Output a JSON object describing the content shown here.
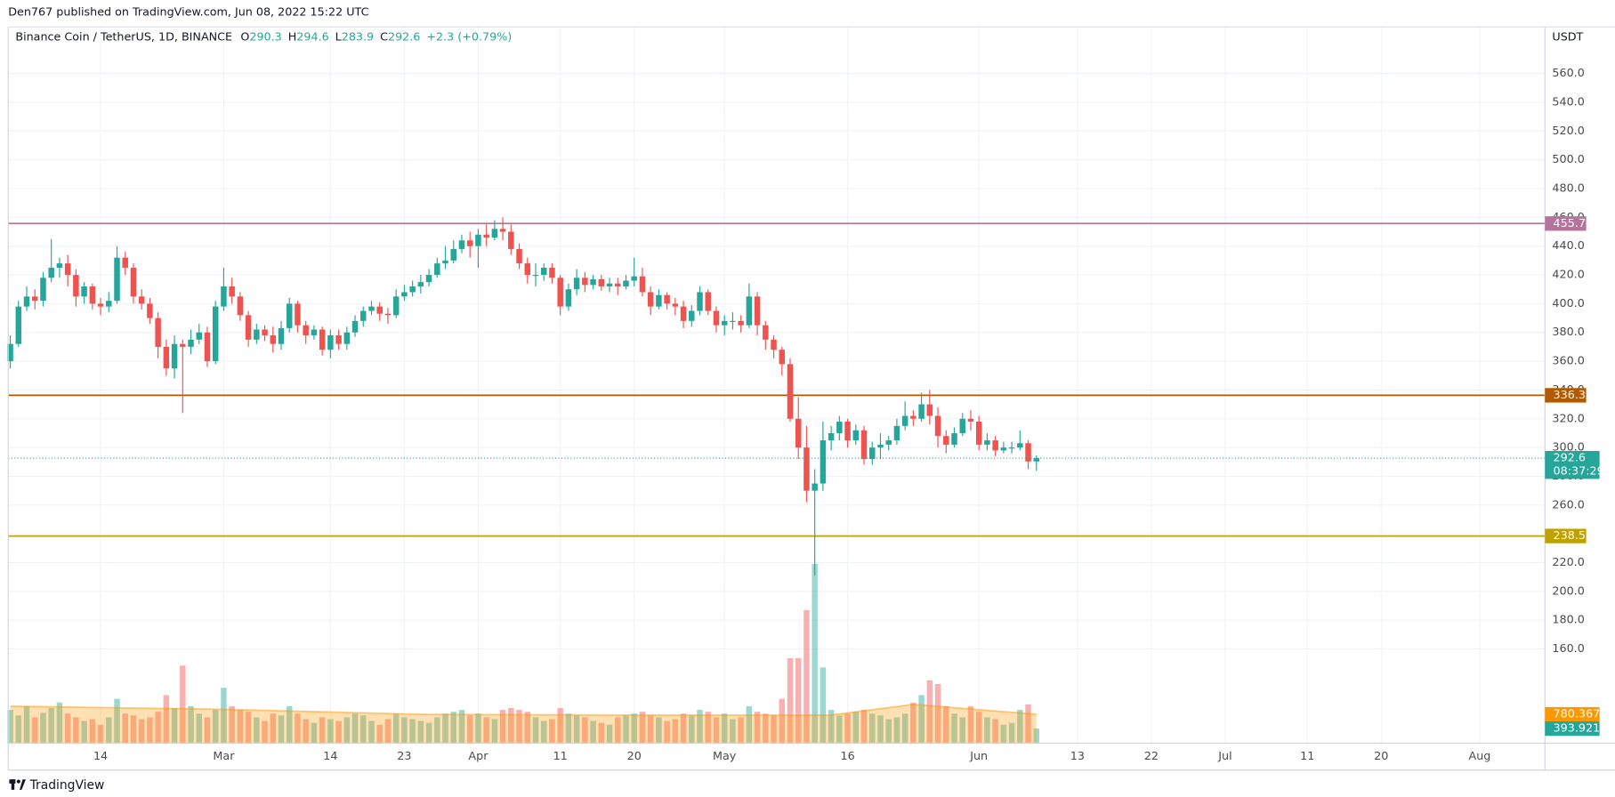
{
  "chart_data": {
    "type": "candlestick",
    "published": "Den767 published on TradingView.com, Jun 08, 2022 15:22 UTC",
    "title": "Binance Coin / TetherUS, 1D, BINANCE",
    "ohlc_labels": [
      "O",
      "H",
      "L",
      "C"
    ],
    "change": "+2.3 (+0.79%)",
    "currency": "USDT",
    "countdown": "08:37:29",
    "brand": "TradingView",
    "up_color": "#26a69a",
    "down_color": "#ef5350",
    "open": [
      360,
      372,
      398,
      405,
      402,
      418,
      425,
      428,
      420,
      405,
      412,
      400,
      398,
      402,
      432,
      425,
      405,
      400,
      390,
      370,
      355,
      372,
      370,
      375,
      380,
      360,
      398,
      412,
      405,
      392,
      375,
      382,
      378,
      372,
      383,
      400,
      385,
      378,
      382,
      368,
      378,
      372,
      380,
      388,
      395,
      398,
      393,
      392,
      405,
      408,
      412,
      415,
      420,
      428,
      430,
      438,
      444,
      440,
      448,
      446,
      452,
      450,
      438,
      428,
      420,
      420,
      425,
      418,
      398,
      410,
      418,
      413,
      417,
      412,
      414,
      412,
      416,
      419,
      408,
      398,
      406,
      400,
      398,
      388,
      395,
      408,
      395,
      385,
      388,
      388,
      385,
      405,
      385,
      375,
      368,
      358,
      320,
      300,
      270,
      275,
      305,
      310,
      318,
      305,
      312,
      292,
      300,
      302,
      305,
      315,
      322,
      320,
      330,
      322,
      308,
      302,
      310,
      320,
      318,
      302,
      305,
      298,
      300,
      300,
      303,
      290.3
    ],
    "high": [
      378,
      402,
      412,
      410,
      422,
      445,
      432,
      434,
      424,
      415,
      414,
      404,
      408,
      440,
      436,
      428,
      410,
      404,
      394,
      375,
      378,
      375,
      382,
      386,
      384,
      402,
      425,
      418,
      408,
      395,
      386,
      385,
      384,
      388,
      404,
      402,
      388,
      385,
      384,
      382,
      382,
      384,
      392,
      398,
      402,
      401,
      397,
      410,
      413,
      416,
      420,
      424,
      432,
      440,
      444,
      448,
      450,
      452,
      455,
      458,
      460,
      455,
      442,
      432,
      428,
      428,
      428,
      420,
      414,
      424,
      422,
      420,
      420,
      418,
      418,
      420,
      432,
      425,
      412,
      410,
      408,
      404,
      402,
      399,
      412,
      410,
      398,
      392,
      394,
      392,
      414,
      408,
      388,
      378,
      370,
      362,
      335,
      315,
      285,
      318,
      315,
      322,
      320,
      316,
      315,
      304,
      310,
      308,
      320,
      332,
      326,
      338,
      340,
      328,
      312,
      314,
      324,
      326,
      322,
      310,
      308,
      304,
      304,
      312,
      305,
      294.6
    ],
    "low": [
      355,
      370,
      395,
      396,
      398,
      415,
      418,
      412,
      398,
      400,
      396,
      392,
      394,
      400,
      420,
      400,
      396,
      386,
      362,
      350,
      348,
      324,
      365,
      372,
      356,
      358,
      395,
      400,
      388,
      370,
      372,
      374,
      366,
      368,
      380,
      380,
      372,
      375,
      364,
      362,
      368,
      368,
      377,
      384,
      392,
      388,
      386,
      390,
      402,
      405,
      407,
      412,
      418,
      424,
      428,
      435,
      432,
      425,
      440,
      444,
      444,
      434,
      424,
      414,
      412,
      416,
      414,
      392,
      395,
      406,
      408,
      410,
      409,
      408,
      406,
      410,
      412,
      405,
      392,
      396,
      396,
      392,
      383,
      384,
      392,
      392,
      380,
      378,
      382,
      380,
      383,
      378,
      368,
      362,
      350,
      318,
      292,
      262,
      211,
      270,
      298,
      305,
      300,
      302,
      288,
      288,
      292,
      298,
      302,
      312,
      315,
      318,
      316,
      300,
      296,
      300,
      308,
      312,
      298,
      298,
      294,
      296,
      296,
      298,
      285,
      283.9
    ],
    "close": [
      372,
      398,
      405,
      402,
      418,
      425,
      428,
      420,
      405,
      412,
      400,
      398,
      402,
      432,
      425,
      405,
      400,
      390,
      370,
      355,
      372,
      370,
      375,
      380,
      360,
      398,
      412,
      405,
      392,
      375,
      382,
      378,
      372,
      383,
      400,
      385,
      378,
      382,
      368,
      378,
      372,
      380,
      388,
      395,
      398,
      393,
      392,
      405,
      408,
      412,
      415,
      420,
      428,
      430,
      438,
      444,
      440,
      448,
      446,
      452,
      450,
      438,
      428,
      420,
      420,
      425,
      418,
      398,
      410,
      418,
      413,
      417,
      412,
      414,
      412,
      416,
      419,
      408,
      398,
      406,
      400,
      398,
      388,
      395,
      408,
      395,
      385,
      388,
      388,
      385,
      405,
      385,
      375,
      368,
      358,
      320,
      300,
      270,
      275,
      305,
      310,
      318,
      305,
      312,
      292,
      300,
      302,
      305,
      315,
      322,
      320,
      330,
      322,
      308,
      302,
      310,
      320,
      318,
      302,
      305,
      298,
      300,
      300,
      303,
      290.3,
      292.6
    ],
    "volumes": [
      900000,
      750000,
      1000000,
      700000,
      820000,
      950000,
      1100000,
      800000,
      700000,
      600000,
      650000,
      500000,
      700000,
      1200000,
      800000,
      750000,
      650000,
      700000,
      850000,
      1300000,
      950000,
      2100000,
      1000000,
      800000,
      700000,
      900000,
      1500000,
      1000000,
      900000,
      850000,
      700000,
      600000,
      800000,
      750000,
      1000000,
      800000,
      650000,
      550000,
      700000,
      650000,
      600000,
      700000,
      800000,
      750000,
      600000,
      500000,
      650000,
      800000,
      700000,
      650000,
      600000,
      550000,
      700000,
      800000,
      850000,
      900000,
      750000,
      800000,
      700000,
      650000,
      900000,
      950000,
      900000,
      850000,
      700000,
      600000,
      650000,
      950000,
      800000,
      750000,
      700000,
      600000,
      550000,
      500000,
      700000,
      750000,
      800000,
      850000,
      750000,
      700000,
      600000,
      650000,
      800000,
      750000,
      900000,
      850000,
      700000,
      800000,
      650000,
      700000,
      1000000,
      850000,
      800000,
      750000,
      1200000,
      2300000,
      2300000,
      3600000,
      4850000,
      2050000,
      900000,
      750000,
      800000,
      850000,
      900000,
      800000,
      750000,
      650000,
      700000,
      800000,
      1100000,
      1300000,
      1700000,
      1600000,
      1000000,
      800000,
      700000,
      1000000,
      850000,
      700000,
      650000,
      500000,
      550000,
      900000,
      1050000,
      393921
    ],
    "volume_label": "393.921K",
    "volume_ma": {
      "x": [
        0,
        25,
        50,
        75,
        100,
        110,
        125
      ],
      "values": [
        1000000,
        920000,
        780000,
        760000,
        760000,
        1050000,
        780367
      ],
      "label": "780.367K",
      "color": "#ff9800"
    },
    "levels": [
      {
        "value": 455.7,
        "color": "#b5739c"
      },
      {
        "value": 336.3,
        "color": "#b35900"
      },
      {
        "value": 238.5,
        "color": "#bfa100"
      }
    ],
    "xlim": [
      -0.25,
      186.95
    ],
    "xticks": [
      {
        "value": 11,
        "label": "14"
      },
      {
        "value": 26,
        "label": "Mar"
      },
      {
        "value": 39,
        "label": "14"
      },
      {
        "value": 48,
        "label": "23"
      },
      {
        "value": 57,
        "label": "Apr"
      },
      {
        "value": 67,
        "label": "11"
      },
      {
        "value": 76,
        "label": "20"
      },
      {
        "value": 87,
        "label": "May"
      },
      {
        "value": 102,
        "label": "16"
      },
      {
        "value": 118,
        "label": "Jun"
      },
      {
        "value": 130,
        "label": "13"
      },
      {
        "value": 139,
        "label": "22"
      },
      {
        "value": 148,
        "label": "Jul"
      },
      {
        "value": 158,
        "label": "11"
      },
      {
        "value": 167,
        "label": "20"
      },
      {
        "value": 179,
        "label": "Aug"
      }
    ],
    "ylim": [
      94.5,
      589.5
    ],
    "yticks": [
      {
        "value": 160,
        "label": "160.0"
      },
      {
        "value": 180,
        "label": "180.0"
      },
      {
        "value": 200,
        "label": "200.0"
      },
      {
        "value": 220,
        "label": "220.0"
      },
      {
        "value": 240,
        "label": "240.0"
      },
      {
        "value": 260,
        "label": "260.0"
      },
      {
        "value": 280,
        "label": "280.0"
      },
      {
        "value": 300,
        "label": "300.0"
      },
      {
        "value": 320,
        "label": "320.0"
      },
      {
        "value": 340,
        "label": "340.0"
      },
      {
        "value": 360,
        "label": "360.0"
      },
      {
        "value": 380,
        "label": "380.0"
      },
      {
        "value": 400,
        "label": "400.0"
      },
      {
        "value": 420,
        "label": "420.0"
      },
      {
        "value": 440,
        "label": "440.0"
      },
      {
        "value": 460,
        "label": "460.0"
      },
      {
        "value": 480,
        "label": "480.0"
      },
      {
        "value": 500,
        "label": "500.0"
      },
      {
        "value": 520,
        "label": "520.0"
      },
      {
        "value": 540,
        "label": "540.0"
      },
      {
        "value": 560,
        "label": "560.0"
      }
    ],
    "vlim": [
      0,
      5600000
    ],
    "grid": true
  }
}
